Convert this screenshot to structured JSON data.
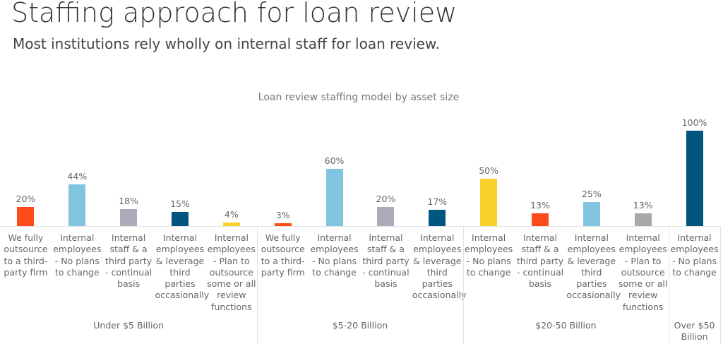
{
  "chart_data": {
    "type": "bar",
    "title": "Staffing approach for loan review",
    "subtitle": "Most institutions rely wholly on internal staff for loan review.",
    "chart_title": "Loan review staffing model by asset size",
    "groups": [
      {
        "name": "Under $5 Billion",
        "categories": [
          "We fully outsource to a third-party firm",
          "Internal employees - No plans to change",
          "Internal staff & a third party - continual basis",
          "Internal employees & leverage third parties occasionally",
          "Internal employees - Plan to outsource some or all review functions"
        ],
        "values": [
          20,
          44,
          18,
          15,
          4
        ],
        "value_labels": [
          "20%",
          "44%",
          "18%",
          "15%",
          "4%"
        ],
        "colors": [
          "#fc4c1a",
          "#80c4e0",
          "#acabbb",
          "#00567f",
          "#f8d12b"
        ]
      },
      {
        "name": "$5-20 Billion",
        "categories": [
          "We fully outsource to a third-party firm",
          "Internal employees - No plans to change",
          "Internal staff & a third party - continual basis",
          "Internal employees & leverage third parties occasionally"
        ],
        "values": [
          3,
          60,
          20,
          17
        ],
        "value_labels": [
          "3%",
          "60%",
          "20%",
          "17%"
        ],
        "colors": [
          "#fc4c1a",
          "#80c4e0",
          "#acabbb",
          "#00567f"
        ]
      },
      {
        "name": "$20-50 Billion",
        "categories": [
          "Internal employees - No plans to change",
          "Internal staff & a third party - continual basis",
          "Internal employees & leverage third parties occasionally",
          "Internal employees - Plan to outsource some or all review functions"
        ],
        "values": [
          50,
          13,
          25,
          13
        ],
        "value_labels": [
          "50%",
          "13%",
          "25%",
          "13%"
        ],
        "colors": [
          "#f8d12b",
          "#fc4c1a",
          "#80c4e0",
          "#a9a9a9"
        ]
      },
      {
        "name": "Over $50 Billion",
        "categories": [
          "Internal employees - No plans to change"
        ],
        "values": [
          100
        ],
        "value_labels": [
          "100%"
        ],
        "colors": [
          "#00567f"
        ]
      }
    ]
  }
}
